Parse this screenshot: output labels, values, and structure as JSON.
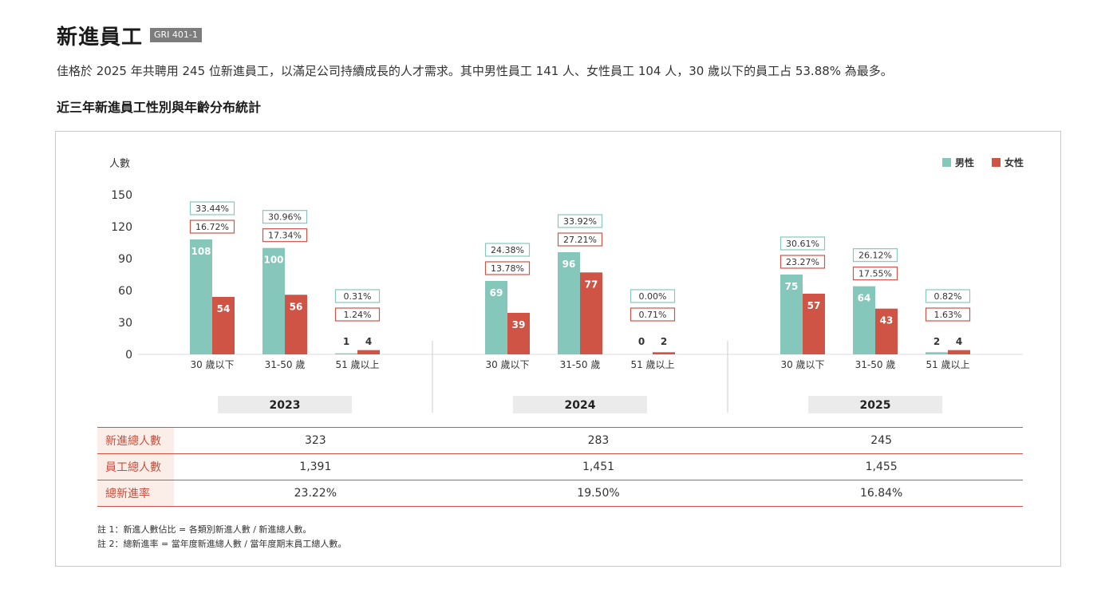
{
  "header": {
    "title": "新進員工",
    "gri_tag": "GRI 401-1",
    "intro": "佳格於 2025 年共聘用 245 位新進員工，以滿足公司持續成長的人才需求。其中男性員工 141 人、女性員工 104 人，30 歲以下的員工占 53.88% 為最多。",
    "subtitle": "近三年新進員工性別與年齡分布統計"
  },
  "colors": {
    "male": "#86c7bc",
    "female": "#cf5446",
    "grid": "#dddddd"
  },
  "chart_data": {
    "type": "bar",
    "ylabel": "人數",
    "ylim": [
      0,
      150
    ],
    "yticks": [
      0,
      30,
      60,
      90,
      120,
      150
    ],
    "legend": [
      "男性",
      "女性"
    ],
    "legend_position": "top-right",
    "groups": [
      {
        "year": "2023",
        "categories": [
          "30 歲以下",
          "31-50 歲",
          "51 歲以上"
        ],
        "male": [
          108,
          100,
          1
        ],
        "female": [
          54,
          56,
          4
        ],
        "pct_male": [
          "33.44%",
          "30.96%",
          "0.31%"
        ],
        "pct_female": [
          "16.72%",
          "17.34%",
          "1.24%"
        ]
      },
      {
        "year": "2024",
        "categories": [
          "30 歲以下",
          "31-50 歲",
          "51 歲以上"
        ],
        "male": [
          69,
          96,
          0
        ],
        "female": [
          39,
          77,
          2
        ],
        "pct_male": [
          "24.38%",
          "33.92%",
          "0.00%"
        ],
        "pct_female": [
          "13.78%",
          "27.21%",
          "0.71%"
        ]
      },
      {
        "year": "2025",
        "categories": [
          "30 歲以下",
          "31-50 歲",
          "51 歲以上"
        ],
        "male": [
          75,
          64,
          2
        ],
        "female": [
          57,
          43,
          4
        ],
        "pct_male": [
          "30.61%",
          "26.12%",
          "0.82%"
        ],
        "pct_female": [
          "23.27%",
          "17.55%",
          "1.63%"
        ]
      }
    ]
  },
  "table": {
    "rows": [
      {
        "label": "新進總人數",
        "values": [
          "323",
          "283",
          "245"
        ]
      },
      {
        "label": "員工總人數",
        "values": [
          "1,391",
          "1,451",
          "1,455"
        ]
      },
      {
        "label": "總新進率",
        "values": [
          "23.22%",
          "19.50%",
          "16.84%"
        ]
      }
    ]
  },
  "notes": [
    "註 1：新進人數佔比 = 各類別新進人數 / 新進總人數。",
    "註 2：總新進率 = 當年度新進總人數 / 當年度期末員工總人數。"
  ]
}
